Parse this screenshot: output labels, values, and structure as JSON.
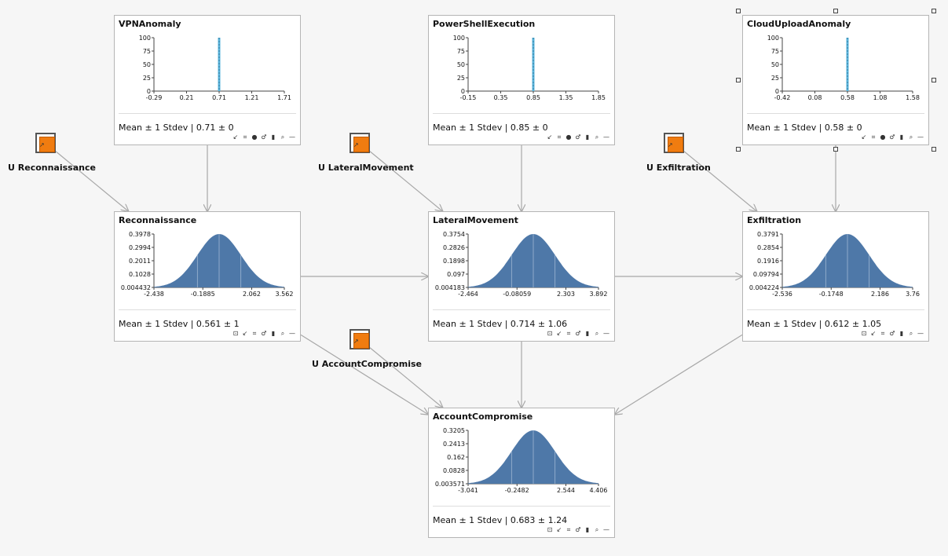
{
  "nodes": [
    {
      "id": "vpn",
      "title": "VPNAnomaly",
      "type": "spike",
      "yticks": [
        "100",
        "75",
        "50",
        "25",
        "0"
      ],
      "xticks": [
        "-0.29",
        "0.21",
        "0.71",
        "1.21",
        "1.71"
      ],
      "spike_value": 0.71,
      "xrange": [
        -0.29,
        1.71
      ],
      "mean_text": "Mean ± 1 Stdev | 0.71 ± 0",
      "toolbar": [
        "↙",
        "⌗",
        "●",
        "♂",
        "▮",
        "⌕",
        "—"
      ]
    },
    {
      "id": "ps",
      "title": "PowerShellExecution",
      "type": "spike",
      "yticks": [
        "100",
        "75",
        "50",
        "25",
        "0"
      ],
      "xticks": [
        "-0.15",
        "0.35",
        "0.85",
        "1.35",
        "1.85"
      ],
      "spike_value": 0.85,
      "xrange": [
        -0.15,
        1.85
      ],
      "mean_text": "Mean ± 1 Stdev | 0.85 ± 0",
      "toolbar": [
        "↙",
        "⌗",
        "●",
        "♂",
        "▮",
        "⌕",
        "—"
      ]
    },
    {
      "id": "cloud",
      "title": "CloudUploadAnomaly",
      "type": "spike",
      "yticks": [
        "100",
        "75",
        "50",
        "25",
        "0"
      ],
      "xticks": [
        "-0.42",
        "0.08",
        "0.58",
        "1.08",
        "1.58"
      ],
      "spike_value": 0.58,
      "xrange": [
        -0.42,
        1.58
      ],
      "mean_text": "Mean ± 1 Stdev | 0.58 ± 0",
      "toolbar": [
        "↙",
        "⌗",
        "●",
        "♂",
        "▮",
        "⌕",
        "—"
      ]
    },
    {
      "id": "recon",
      "title": "Reconnaissance",
      "type": "normal",
      "yticks": [
        "0.3978",
        "0.2994",
        "0.2011",
        "0.1028",
        "0.004432"
      ],
      "xticks": [
        "-2.438",
        "-0.1885",
        "2.062",
        "3.562"
      ],
      "xrange": [
        -2.438,
        3.562
      ],
      "mean": 0.561,
      "stdev": 1,
      "mean_text": "Mean ± 1 Stdev | 0.561 ± 1",
      "toolbar": [
        "⊡",
        "↙",
        "⌗",
        "♂",
        "▮",
        "⌕",
        "—"
      ]
    },
    {
      "id": "lateral",
      "title": "LateralMovement",
      "type": "normal",
      "yticks": [
        "0.3754",
        "0.2826",
        "0.1898",
        "0.097",
        "0.004183"
      ],
      "xticks": [
        "-2.464",
        "-0.08059",
        "2.303",
        "3.892"
      ],
      "xrange": [
        -2.464,
        3.892
      ],
      "mean": 0.714,
      "stdev": 1.06,
      "mean_text": "Mean ± 1 Stdev | 0.714 ± 1.06",
      "toolbar": [
        "⊡",
        "↙",
        "⌗",
        "♂",
        "▮",
        "⌕",
        "—"
      ]
    },
    {
      "id": "exfil",
      "title": "Exfiltration",
      "type": "normal",
      "yticks": [
        "0.3791",
        "0.2854",
        "0.1916",
        "0.09794",
        "0.004224"
      ],
      "xticks": [
        "-2.536",
        "-0.1748",
        "2.186",
        "3.76"
      ],
      "xrange": [
        -2.536,
        3.76
      ],
      "mean": 0.612,
      "stdev": 1.05,
      "mean_text": "Mean ± 1 Stdev | 0.612 ± 1.05",
      "toolbar": [
        "⊡",
        "↙",
        "⌗",
        "♂",
        "▮",
        "⌕",
        "—"
      ]
    },
    {
      "id": "account",
      "title": "AccountCompromise",
      "type": "normal",
      "yticks": [
        "0.3205",
        "0.2413",
        "0.162",
        "0.0828",
        "0.003571"
      ],
      "xticks": [
        "-3.041",
        "-0.2482",
        "2.544",
        "4.406"
      ],
      "xrange": [
        -3.041,
        4.406
      ],
      "mean": 0.683,
      "stdev": 1.24,
      "mean_text": "Mean ± 1 Stdev | 0.683 ± 1.24",
      "toolbar": [
        "⊡",
        "↙",
        "⌗",
        "♂",
        "▮",
        "⌕",
        "—"
      ]
    }
  ],
  "u_nodes": [
    {
      "id": "u-recon",
      "label": "U  Reconnaissance"
    },
    {
      "id": "u-lateral",
      "label": "U  LateralMovement"
    },
    {
      "id": "u-exfil",
      "label": "U  Exfiltration"
    },
    {
      "id": "u-account",
      "label": "U  AccountCompromise"
    }
  ],
  "edges": [
    {
      "from": "vpn",
      "to": "recon"
    },
    {
      "from": "ps",
      "to": "lateral"
    },
    {
      "from": "cloud",
      "to": "exfil"
    },
    {
      "from": "u-recon",
      "to": "recon"
    },
    {
      "from": "u-lateral",
      "to": "lateral"
    },
    {
      "from": "u-exfil",
      "to": "exfil"
    },
    {
      "from": "u-account",
      "to": "account"
    },
    {
      "from": "recon",
      "to": "lateral"
    },
    {
      "from": "lateral",
      "to": "exfil"
    },
    {
      "from": "recon",
      "to": "account"
    },
    {
      "from": "lateral",
      "to": "account"
    },
    {
      "from": "exfil",
      "to": "account"
    }
  ],
  "selected_node": "cloud",
  "colors": {
    "spike": "#5ab4dc",
    "normal_fill": "#4e78a8",
    "u_fill": "#f07c10",
    "edge": "#a8a8a8"
  }
}
